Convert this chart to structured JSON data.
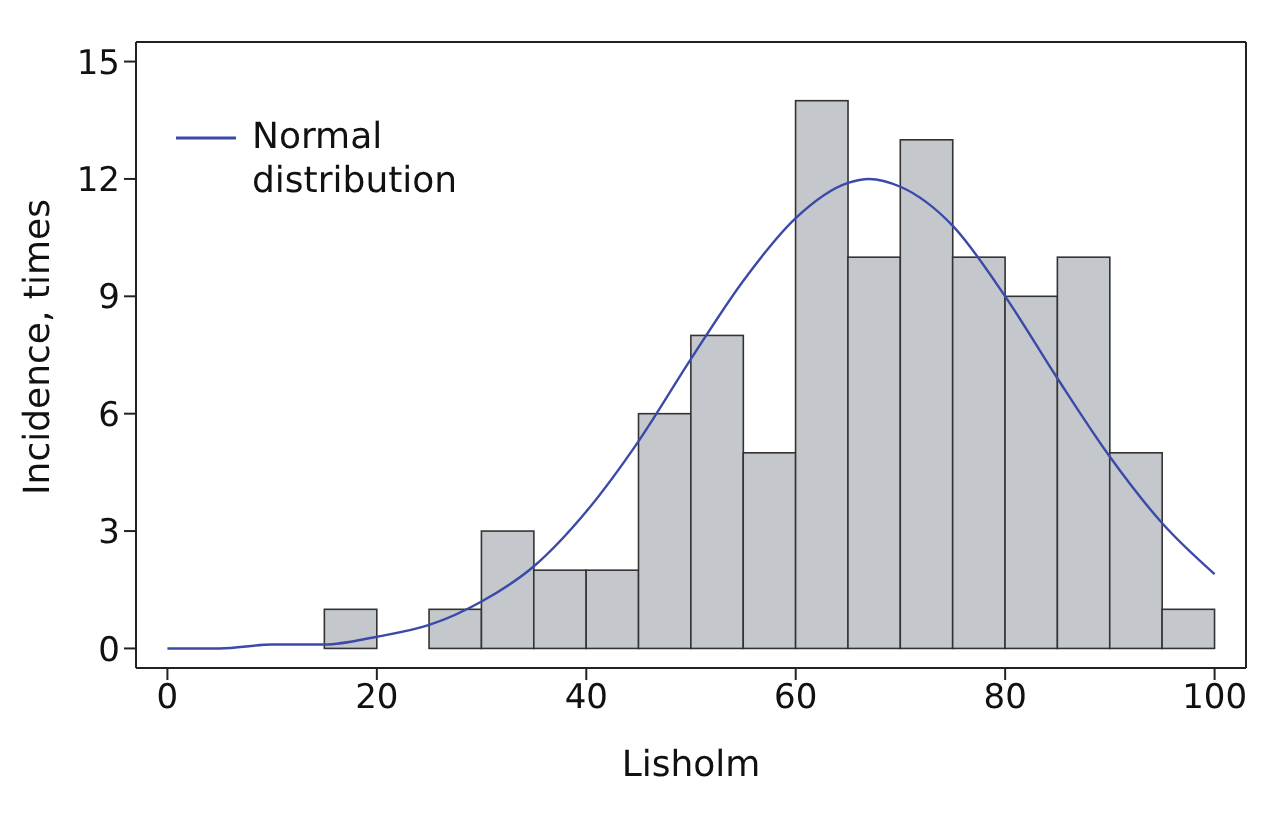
{
  "chart_data": {
    "type": "histogram",
    "xlabel": "Lisholm",
    "ylabel": "Incidence, times",
    "bins": [
      15,
      20,
      25,
      30,
      35,
      40,
      45,
      50,
      55,
      60,
      65,
      70,
      75,
      80,
      85,
      90,
      95,
      100
    ],
    "values": [
      1,
      0,
      1,
      3,
      2,
      2,
      6,
      8,
      5,
      14,
      10,
      13,
      10,
      9,
      10,
      5,
      1
    ],
    "color": "#c4c7cb",
    "series": [
      {
        "type": "line",
        "name": "Normal distribution",
        "color": "#3b4aa8",
        "x": [
          0,
          5,
          10,
          15,
          20,
          25,
          30,
          35,
          40,
          45,
          50,
          55,
          60,
          65,
          67,
          70,
          75,
          80,
          85,
          90,
          95,
          100
        ],
        "values": [
          0,
          0,
          0.1,
          0.1,
          0.3,
          0.6,
          1.2,
          2.1,
          3.5,
          5.3,
          7.4,
          9.4,
          11,
          11.9,
          12,
          11.8,
          10.8,
          9,
          6.9,
          4.9,
          3.2,
          1.9
        ]
      }
    ],
    "xlim": [
      -3,
      103
    ],
    "xticks": [
      0,
      20,
      40,
      60,
      80,
      100
    ],
    "ylim": [
      -0.5,
      15.5
    ],
    "yticks": [
      0,
      3,
      6,
      9,
      12,
      15
    ],
    "grid": false,
    "legend": "top left",
    "marker": "none",
    "line_style": "solid"
  }
}
